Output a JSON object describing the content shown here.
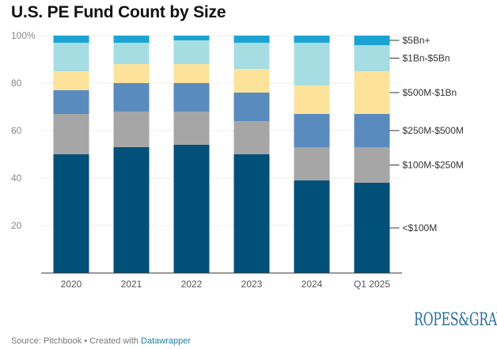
{
  "chart_data": {
    "type": "bar",
    "stacked": true,
    "title": "U.S. PE Fund Count by Size",
    "categories": [
      "2020",
      "2021",
      "2022",
      "2023",
      "2024",
      "Q1 2025"
    ],
    "series": [
      {
        "name": "<$100M",
        "color": "#00507a",
        "values": [
          50,
          53,
          54,
          50,
          39,
          38
        ]
      },
      {
        "name": "$100M-$250M",
        "color": "#a6a6a6",
        "values": [
          17,
          15,
          14,
          14,
          14,
          15
        ]
      },
      {
        "name": "$250M-$500M",
        "color": "#5a8bbf",
        "values": [
          10,
          12,
          12,
          12,
          14,
          14
        ]
      },
      {
        "name": "$500M-$1Bn",
        "color": "#fde39a",
        "values": [
          8,
          8,
          8,
          10,
          12,
          18
        ]
      },
      {
        "name": "$1Bn-$5Bn",
        "color": "#a5dde3",
        "values": [
          12,
          9,
          10,
          11,
          18,
          11
        ]
      },
      {
        "name": "$5Bn+",
        "color": "#1ba3d3",
        "values": [
          3,
          3,
          2,
          3,
          3,
          4
        ]
      }
    ],
    "ylim": [
      0,
      100
    ],
    "yticks": [
      20,
      40,
      60,
      80,
      100
    ],
    "ytick_labels": [
      "20",
      "40",
      "60",
      "80",
      "100%"
    ],
    "grid": true,
    "legend": "right, inline labels"
  },
  "footer": {
    "source": "Source: Pitchbook • Created with ",
    "tool": "Datawrapper"
  },
  "logo": "ROPES&GRAY"
}
